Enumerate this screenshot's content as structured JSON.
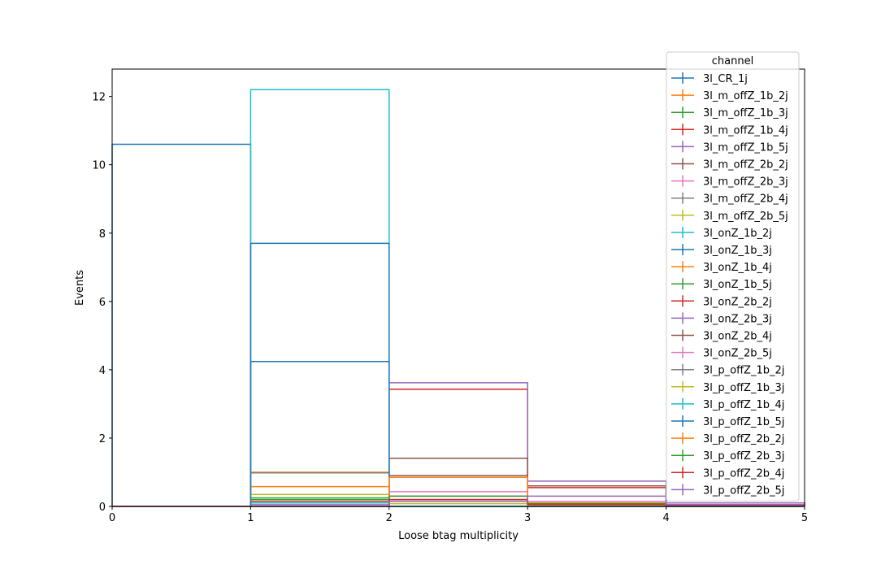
{
  "chart_data": {
    "type": "histogram-step",
    "title": "",
    "xlabel": "Loose btag multiplicity",
    "ylabel": "Events",
    "xlim": [
      0,
      5
    ],
    "ylim": [
      0,
      12.8
    ],
    "xticks": [
      "0",
      "1",
      "2",
      "3",
      "4",
      "5"
    ],
    "yticks": [
      "0",
      "2",
      "4",
      "6",
      "8",
      "10",
      "12"
    ],
    "bin_edges": [
      0,
      1,
      2,
      3,
      4,
      5
    ],
    "legend_title": "channel",
    "legend_position": "top-right",
    "series": [
      {
        "name": "3l_CR_1j",
        "color": "#1f77b4",
        "values": [
          10.6,
          0,
          0,
          0,
          0
        ]
      },
      {
        "name": "3l_m_offZ_1b_2j",
        "color": "#ff7f0e",
        "values": [
          0,
          0.58,
          0,
          0,
          0
        ]
      },
      {
        "name": "3l_m_offZ_1b_3j",
        "color": "#2ca02c",
        "values": [
          0,
          0.25,
          0,
          0,
          0
        ]
      },
      {
        "name": "3l_m_offZ_1b_4j",
        "color": "#d62728",
        "values": [
          0,
          0.15,
          0,
          0,
          0
        ]
      },
      {
        "name": "3l_m_offZ_1b_5j",
        "color": "#9467bd",
        "values": [
          0,
          0.05,
          0,
          0,
          0
        ]
      },
      {
        "name": "3l_m_offZ_2b_2j",
        "color": "#8c564b",
        "values": [
          0,
          0,
          0.9,
          0.05,
          0.02
        ]
      },
      {
        "name": "3l_m_offZ_2b_3j",
        "color": "#e377c2",
        "values": [
          0,
          0,
          0.43,
          0.05,
          0.02
        ]
      },
      {
        "name": "3l_m_offZ_2b_4j",
        "color": "#7f7f7f",
        "values": [
          0,
          0,
          0.2,
          0.03,
          0.01
        ]
      },
      {
        "name": "3l_m_offZ_2b_5j",
        "color": "#bcbd22",
        "values": [
          0,
          0,
          0.08,
          0.02,
          0.01
        ]
      },
      {
        "name": "3l_onZ_1b_2j",
        "color": "#17becf",
        "values": [
          0,
          12.2,
          0,
          0,
          0
        ]
      },
      {
        "name": "3l_onZ_1b_3j",
        "color": "#1f77b4",
        "values": [
          0,
          7.7,
          0,
          0,
          0
        ]
      },
      {
        "name": "3l_onZ_1b_4j",
        "color": "#ff7f0e",
        "values": [
          0,
          1.0,
          0,
          0,
          0
        ]
      },
      {
        "name": "3l_onZ_1b_5j",
        "color": "#2ca02c",
        "values": [
          0,
          0.2,
          0,
          0,
          0
        ]
      },
      {
        "name": "3l_onZ_2b_2j",
        "color": "#d62728",
        "values": [
          0,
          0,
          3.43,
          0.55,
          0.1
        ]
      },
      {
        "name": "3l_onZ_2b_3j",
        "color": "#9467bd",
        "values": [
          0,
          0,
          3.62,
          0.74,
          0.1
        ]
      },
      {
        "name": "3l_onZ_2b_4j",
        "color": "#8c564b",
        "values": [
          0,
          0,
          1.41,
          0.6,
          0.05
        ]
      },
      {
        "name": "3l_onZ_2b_5j",
        "color": "#e377c2",
        "values": [
          0,
          0,
          0.3,
          0.15,
          0.05
        ]
      },
      {
        "name": "3l_p_offZ_1b_2j",
        "color": "#7f7f7f",
        "values": [
          0,
          0.98,
          0,
          0,
          0
        ]
      },
      {
        "name": "3l_p_offZ_1b_3j",
        "color": "#bcbd22",
        "values": [
          0,
          0.35,
          0,
          0,
          0
        ]
      },
      {
        "name": "3l_p_offZ_1b_4j",
        "color": "#17becf",
        "values": [
          0,
          0.1,
          0,
          0,
          0
        ]
      },
      {
        "name": "3l_p_offZ_1b_5j",
        "color": "#1f77b4",
        "values": [
          0,
          4.24,
          0,
          0,
          0
        ]
      },
      {
        "name": "3l_p_offZ_2b_2j",
        "color": "#ff7f0e",
        "values": [
          0,
          0,
          0.85,
          0.1,
          0.02
        ]
      },
      {
        "name": "3l_p_offZ_2b_3j",
        "color": "#2ca02c",
        "values": [
          0,
          0,
          0.3,
          0.08,
          0.02
        ]
      },
      {
        "name": "3l_p_offZ_2b_4j",
        "color": "#d62728",
        "values": [
          0,
          0,
          0.2,
          0.06,
          0.02
        ]
      },
      {
        "name": "3l_p_offZ_2b_5j",
        "color": "#9467bd",
        "values": [
          0,
          0,
          0.15,
          0.3,
          0.05
        ]
      }
    ]
  }
}
